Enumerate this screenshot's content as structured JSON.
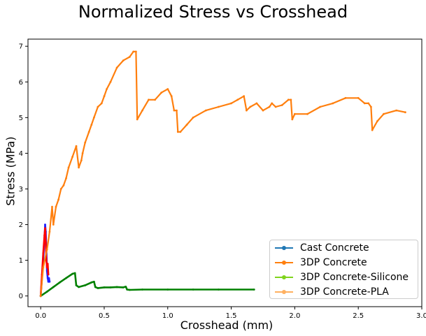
{
  "chart_data": {
    "type": "line",
    "title": "Normalized Stress vs Crosshead",
    "xlabel": "Crosshead (mm)",
    "ylabel": "Stress (MPa)",
    "xlim": [
      -0.1,
      3.0
    ],
    "ylim": [
      -0.3,
      7.2
    ],
    "x_ticks": [
      0.0,
      0.5,
      1.0,
      1.5,
      2.0,
      2.5,
      3.0
    ],
    "x_tick_labels": [
      "0.0",
      "0.5",
      "1.0",
      "1.5",
      "2.0",
      "2.5",
      "3.0"
    ],
    "y_ticks": [
      0,
      1,
      2,
      3,
      4,
      5,
      6,
      7
    ],
    "y_tick_labels": [
      "0",
      "1",
      "2",
      "3",
      "4",
      "5",
      "6",
      "7"
    ],
    "grid": false,
    "legend_position": "lower-right",
    "legend": [
      {
        "label": "Cast Concrete",
        "color": "#1f77b4"
      },
      {
        "label": "3DP Concrete",
        "color": "#ff7f0e"
      },
      {
        "label": "3DP Concrete-Silicone",
        "color": "#7fd41c"
      },
      {
        "label": "3DP Concrete-PLA",
        "color": "#ffb060"
      }
    ],
    "series": [
      {
        "color": "#1f1fff",
        "x": [
          0.0,
          0.01,
          0.02,
          0.03,
          0.035,
          0.04,
          0.045,
          0.05,
          0.055,
          0.06,
          0.065,
          0.07
        ],
        "y": [
          0.0,
          0.5,
          1.0,
          1.6,
          2.0,
          1.8,
          1.3,
          0.7,
          0.5,
          0.4,
          0.5,
          0.4
        ]
      },
      {
        "color": "#ff0000",
        "x": [
          0.0,
          0.01,
          0.02,
          0.03,
          0.035,
          0.04,
          0.045,
          0.05,
          0.055,
          0.06
        ],
        "y": [
          0.0,
          0.6,
          1.2,
          1.7,
          1.9,
          1.5,
          1.0,
          0.8,
          0.9,
          0.6
        ]
      },
      {
        "color": "#008000",
        "x": [
          0.0,
          0.05,
          0.1,
          0.15,
          0.2,
          0.25,
          0.27,
          0.28,
          0.3,
          0.35,
          0.4,
          0.42,
          0.43,
          0.45,
          0.5,
          0.55,
          0.6,
          0.65,
          0.67,
          0.68,
          0.7,
          0.8,
          1.0,
          1.2,
          1.4,
          1.68
        ],
        "y": [
          0.0,
          0.12,
          0.25,
          0.38,
          0.5,
          0.62,
          0.64,
          0.3,
          0.25,
          0.3,
          0.38,
          0.4,
          0.25,
          0.22,
          0.24,
          0.24,
          0.25,
          0.24,
          0.26,
          0.18,
          0.17,
          0.18,
          0.18,
          0.18,
          0.18,
          0.18
        ]
      },
      {
        "color": "#ff7f0e",
        "x": [
          0.0,
          0.02,
          0.05,
          0.07,
          0.09,
          0.1,
          0.12,
          0.14,
          0.16,
          0.18,
          0.2,
          0.22,
          0.25,
          0.28,
          0.3,
          0.32,
          0.33,
          0.35,
          0.38,
          0.4,
          0.42,
          0.45,
          0.48,
          0.5,
          0.52,
          0.55,
          0.6,
          0.65,
          0.7,
          0.73,
          0.75,
          0.76,
          0.8,
          0.85,
          0.9,
          0.95,
          1.0,
          1.03,
          1.05,
          1.07,
          1.08,
          1.1,
          1.15,
          1.2,
          1.3,
          1.4,
          1.5,
          1.55,
          1.6,
          1.62,
          1.65,
          1.7,
          1.75,
          1.8,
          1.82,
          1.85,
          1.9,
          1.95,
          1.97,
          1.98,
          2.0,
          2.1,
          2.2,
          2.3,
          2.4,
          2.5,
          2.55,
          2.58,
          2.6,
          2.61,
          2.65,
          2.7,
          2.8,
          2.87
        ],
        "y": [
          0.0,
          0.8,
          1.3,
          1.8,
          2.5,
          2.0,
          2.5,
          2.7,
          3.0,
          3.1,
          3.3,
          3.6,
          3.9,
          4.2,
          3.6,
          3.8,
          4.0,
          4.3,
          4.6,
          4.8,
          5.0,
          5.3,
          5.4,
          5.6,
          5.8,
          6.0,
          6.4,
          6.6,
          6.7,
          6.85,
          6.85,
          4.95,
          5.2,
          5.5,
          5.5,
          5.7,
          5.8,
          5.6,
          5.2,
          5.2,
          4.6,
          4.6,
          4.8,
          5.0,
          5.2,
          5.3,
          5.4,
          5.5,
          5.6,
          5.2,
          5.3,
          5.4,
          5.2,
          5.3,
          5.4,
          5.3,
          5.35,
          5.5,
          5.5,
          4.95,
          5.1,
          5.1,
          5.3,
          5.4,
          5.55,
          5.55,
          5.4,
          5.4,
          5.3,
          4.65,
          4.9,
          5.1,
          5.2,
          5.15
        ]
      }
    ]
  }
}
